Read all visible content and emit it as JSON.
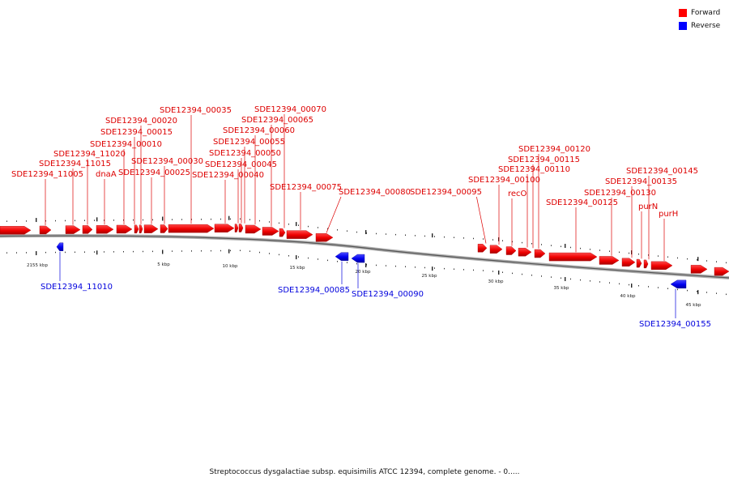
{
  "legend": {
    "forward_label": "Forward",
    "reverse_label": "Reverse",
    "forward_color": "#ff0000",
    "reverse_color": "#0000ff"
  },
  "caption": "Streptococcus dysgalactiae subsp. equisimilis ATCC 12394, complete genome. - 0.....",
  "scale_labels": [
    "2155 kbp",
    "5 kbp",
    "10 kbp",
    "15 kbp",
    "20 kbp",
    "25 kbp",
    "30 kbp",
    "35 kbp",
    "40 kbp",
    "45 kbp"
  ],
  "forward_genes": [
    "SDE12394_11005",
    "SDE12394_11015",
    "SDE12394_11020",
    "dnaA",
    "SDE12394_00010",
    "SDE12394_00015",
    "SDE12394_00020",
    "SDE12394_00025",
    "SDE12394_00030",
    "SDE12394_00035",
    "SDE12394_00040",
    "SDE12394_00045",
    "SDE12394_00050",
    "SDE12394_00055",
    "SDE12394_00060",
    "SDE12394_00065",
    "SDE12394_00070",
    "SDE12394_00075",
    "SDE12394_00080",
    "SDE12394_00095",
    "SDE12394_00100",
    "recO",
    "SDE12394_00110",
    "SDE12394_00115",
    "SDE12394_00120",
    "SDE12394_00125",
    "SDE12394_00130",
    "SDE12394_00135",
    "purN",
    "SDE12394_00145",
    "purH"
  ],
  "reverse_genes": [
    "SDE12394_11010",
    "SDE12394_00085",
    "SDE12394_00090",
    "SDE12394_00155"
  ]
}
